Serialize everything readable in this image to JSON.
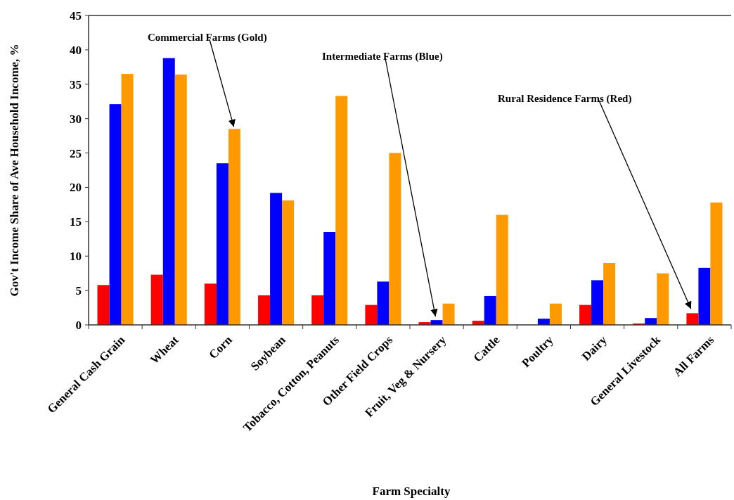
{
  "chart_data": {
    "type": "bar",
    "ylabel": "Gov't Income Share of Ave Household Income, %",
    "xlabel": "Farm Specialty",
    "categories": [
      "General Cash Grain",
      "Wheat",
      "Corn",
      "Soybean",
      "Tobacco, Cotton, Peanuts",
      "Other Field Crops",
      "Fruit, Veg & Nursery",
      "Cattle",
      "Poultry",
      "Dairy",
      "General Livestock",
      "All Farms"
    ],
    "series": [
      {
        "color": "#ff0000",
        "values": [
          5.8,
          7.3,
          6.0,
          4.3,
          4.3,
          2.9,
          0.4,
          0.6,
          0,
          2.9,
          0.2,
          1.7
        ]
      },
      {
        "color": "#0000ff",
        "values": [
          32.1,
          38.8,
          23.5,
          19.2,
          13.5,
          6.3,
          0.7,
          4.2,
          0.9,
          6.5,
          1.0,
          8.3
        ]
      },
      {
        "color": "#ff9900",
        "values": [
          36.5,
          36.4,
          28.5,
          18.1,
          33.3,
          25.0,
          3.1,
          16.0,
          3.1,
          9.0,
          7.5,
          17.8
        ]
      }
    ],
    "annotations": [
      {
        "text": "Commercial Farms (Gold)",
        "x": "Corn",
        "y": 28.5
      },
      "Intermediate Farms (Blue)",
      "Rural Residence Farms (Red)"
    ],
    "ylim": [
      0,
      45
    ],
    "yticks": [
      0,
      5,
      10,
      15,
      20,
      25,
      30,
      35,
      40,
      45
    ],
    "grid": false
  }
}
